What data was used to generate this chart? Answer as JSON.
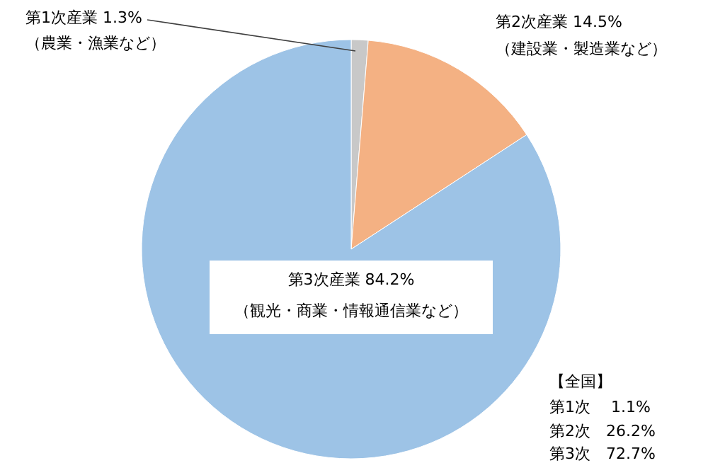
{
  "chart_data": {
    "type": "pie",
    "categories": [
      "第1次産業",
      "第2次産業",
      "第3次産業"
    ],
    "values": [
      1.3,
      14.5,
      84.2
    ],
    "value_labels": [
      "1.3%",
      "14.5%",
      "84.2%"
    ],
    "colors": [
      "#c8c8c8",
      "#f4b183",
      "#9dc3e6"
    ],
    "annotations": [
      "（農業・漁業など）",
      "（建設業・製造業など）",
      "（観光・商業・情報通信業など）",
      "【全国】",
      "第1次　 1.1%",
      "第2次　26.2%",
      "第3次　72.7%"
    ]
  }
}
